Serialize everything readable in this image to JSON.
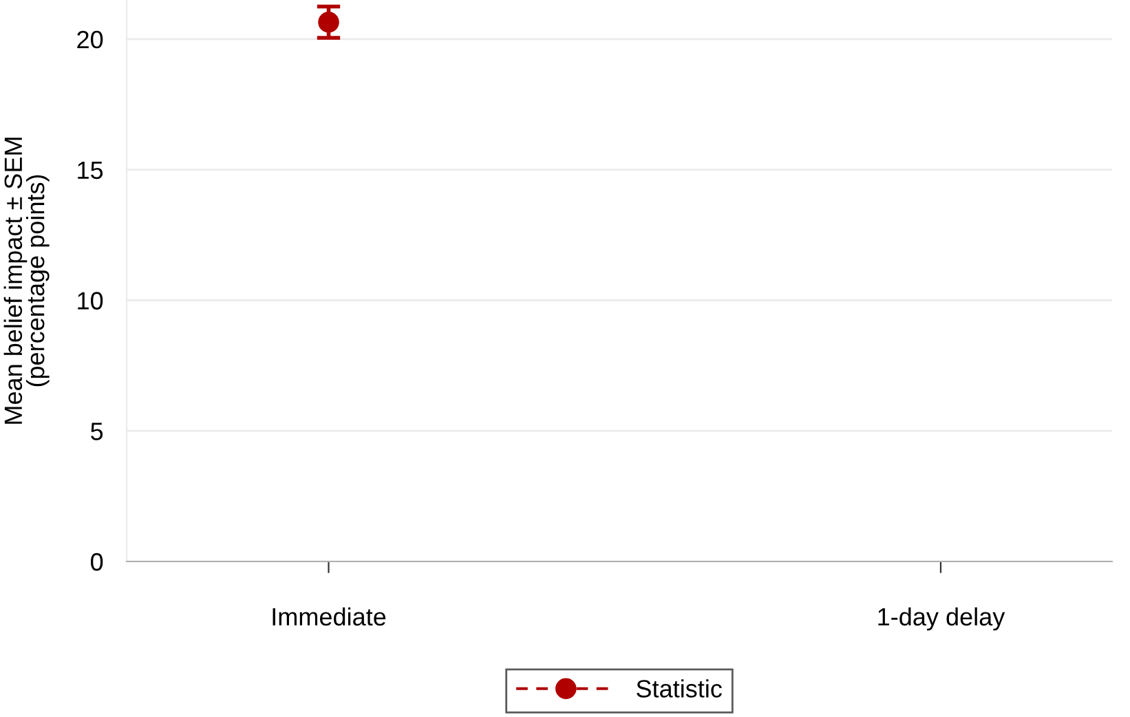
{
  "chart_data": {
    "type": "line",
    "ylabel": "Mean belief impact ± SEM\n(percentage points)",
    "categories": [
      "Immediate",
      "1-day delay"
    ],
    "series": [
      {
        "name": "Statistic",
        "color": "#b00000",
        "values": [
          20.65,
          null
        ],
        "errors": [
          0.6,
          null
        ]
      }
    ],
    "ylim": [
      0,
      21.5
    ],
    "yticks": [
      0,
      5,
      10,
      15,
      20
    ],
    "grid": "y",
    "legend": "bottom",
    "marker": "circle",
    "line_style": "dashed"
  }
}
